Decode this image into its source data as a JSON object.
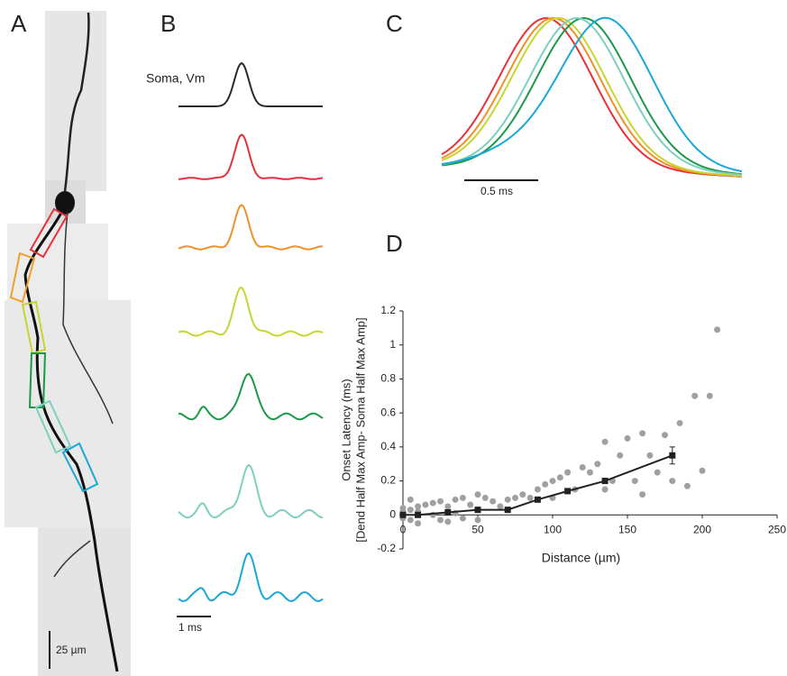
{
  "panel_labels": [
    "A",
    "B",
    "C",
    "D"
  ],
  "scale_bars": {
    "a": "25 µm",
    "b": "1 ms",
    "c": "0.5 ms"
  },
  "trace_label": "Soma, Vm",
  "chart_data": {
    "type": "scatter",
    "xlabel": "Distance (µm)",
    "ylabel": [
      "Onset Latency (ms)",
      "[Dend Half Max Amp- Soma Half Max Amp]"
    ],
    "xlim": [
      0,
      250
    ],
    "xticks": [
      0,
      50,
      100,
      150,
      200,
      250
    ],
    "ylim": [
      -0.2,
      1.2
    ],
    "yticks": [
      -0.2,
      0,
      0.2,
      0.4,
      0.6,
      0.8,
      1,
      1.2
    ],
    "series": [
      {
        "color": "#a0a0a0",
        "mode": "markers",
        "x": [
          0,
          0,
          0,
          5,
          5,
          5,
          10,
          10,
          10,
          15,
          20,
          20,
          25,
          25,
          30,
          30,
          30,
          35,
          35,
          40,
          40,
          45,
          50,
          50,
          50,
          55,
          60,
          65,
          70,
          75,
          80,
          85,
          90,
          95,
          100,
          100,
          105,
          110,
          115,
          120,
          125,
          130,
          135,
          135,
          140,
          145,
          150,
          155,
          160,
          165,
          170,
          175,
          180,
          185,
          195,
          200,
          205,
          210,
          190,
          160
        ],
        "values": [
          0.02,
          -0.02,
          0.04,
          0.09,
          -0.03,
          0.03,
          0.05,
          -0.05,
          0.02,
          0.06,
          0.07,
          0,
          0.08,
          -0.03,
          0.05,
          0.02,
          -0.04,
          0.09,
          0.01,
          0.1,
          -0.02,
          0.06,
          0.12,
          0.03,
          -0.03,
          0.1,
          0.08,
          0.05,
          0.09,
          0.1,
          0.12,
          0.1,
          0.15,
          0.18,
          0.2,
          0.1,
          0.22,
          0.25,
          0.15,
          0.28,
          0.25,
          0.3,
          0.43,
          0.15,
          0.2,
          0.35,
          0.45,
          0.2,
          0.48,
          0.35,
          0.25,
          0.47,
          0.2,
          0.54,
          0.7,
          0.26,
          0.7,
          1.09,
          0.17,
          0.12
        ]
      },
      {
        "color": "#222222",
        "mode": "lines+markers",
        "x": [
          0,
          10,
          30,
          50,
          70,
          90,
          110,
          135,
          180
        ],
        "values": [
          0,
          0,
          0.015,
          0.03,
          0.03,
          0.09,
          0.14,
          0.2,
          0.35
        ],
        "errors": [
          0.005,
          0.005,
          0.006,
          0.008,
          0.008,
          0.01,
          0.012,
          0.015,
          0.05
        ]
      }
    ]
  }
}
